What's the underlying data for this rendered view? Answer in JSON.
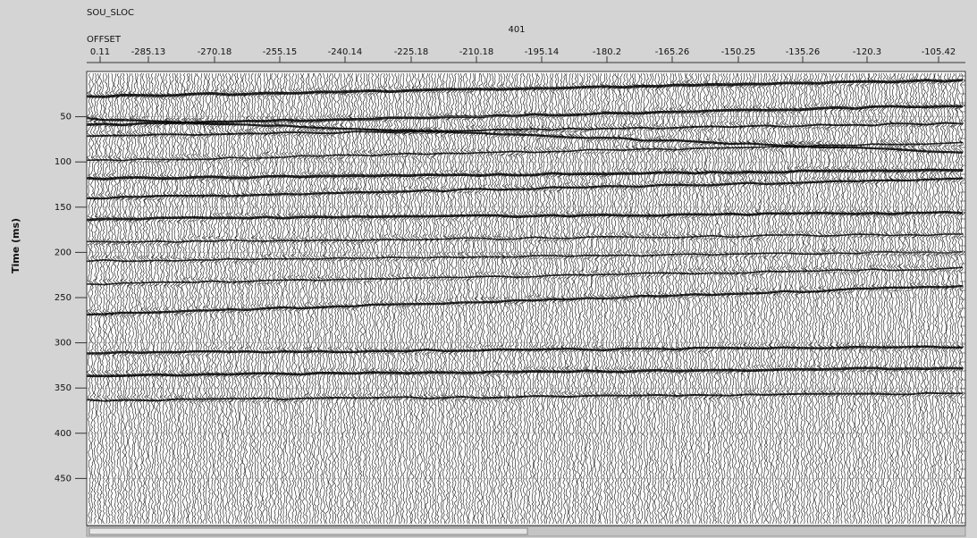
{
  "header": {
    "title": "SOU_SLOC",
    "source_value": "401",
    "offset_title": "OFFSET",
    "offset_labels": [
      "0.11",
      "-285.13",
      "-270.18",
      "-255.15",
      "-240.14",
      "-225.18",
      "-210.18",
      "-195.14",
      "-180.2",
      "-165.26",
      "-150.25",
      "-135.26",
      "-120.3",
      "-105.42"
    ]
  },
  "time_axis": {
    "label": "Time (ms)",
    "lim": [
      0,
      502
    ],
    "ticks": [
      50,
      100,
      150,
      200,
      250,
      300,
      350,
      400,
      450
    ]
  }
}
